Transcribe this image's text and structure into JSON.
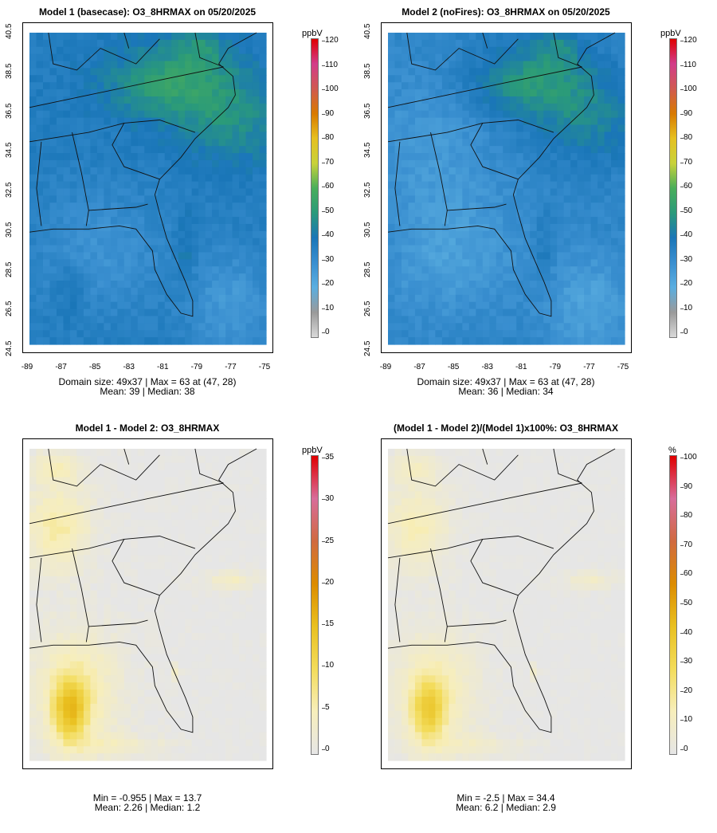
{
  "panels": [
    {
      "title": "Model 1 (basecase): O3_8HRMAX on 05/20/2025",
      "unit": "ppbV",
      "colorbar_ticks": [
        "0",
        "10",
        "20",
        "30",
        "40",
        "50",
        "60",
        "70",
        "80",
        "90",
        "100",
        "110",
        "120"
      ],
      "y_ticks": [
        "24.5",
        "26.5",
        "28.5",
        "30.5",
        "32.5",
        "34.5",
        "36.5",
        "38.5",
        "40.5"
      ],
      "x_ticks": [
        "-89",
        "-87",
        "-85",
        "-83",
        "-81",
        "-79",
        "-77",
        "-75"
      ],
      "stats_line1": "Domain size: 49x37 | Max = 63 at (47, 28)",
      "stats_line2": "Mean: 39 |  Median: 38",
      "scheme": "abs",
      "variant": 1
    },
    {
      "title": "Model 2 (noFires): O3_8HRMAX on 05/20/2025",
      "unit": "ppbV",
      "colorbar_ticks": [
        "0",
        "10",
        "20",
        "30",
        "40",
        "50",
        "60",
        "70",
        "80",
        "90",
        "100",
        "110",
        "120"
      ],
      "y_ticks": [
        "24.5",
        "26.5",
        "28.5",
        "30.5",
        "32.5",
        "34.5",
        "36.5",
        "38.5",
        "40.5"
      ],
      "x_ticks": [
        "-89",
        "-87",
        "-85",
        "-83",
        "-81",
        "-79",
        "-77",
        "-75"
      ],
      "stats_line1": "Domain size: 49x37 | Max = 63 at (47, 28)",
      "stats_line2": "Mean: 36 |  Median: 34",
      "scheme": "abs",
      "variant": 2
    },
    {
      "title": "Model 1 - Model 2: O3_8HRMAX",
      "unit": "ppbV",
      "colorbar_ticks": [
        "0",
        "5",
        "10",
        "15",
        "20",
        "25",
        "30",
        "35"
      ],
      "stats_line1": "Min = -0.955 | Max = 13.7",
      "stats_line2": "Mean: 2.26 |  Median: 1.2",
      "scheme": "diff",
      "variant": 3
    },
    {
      "title": "(Model 1 - Model 2)/(Model 1)x100%: O3_8HRMAX",
      "unit": "%",
      "colorbar_ticks": [
        "0",
        "10",
        "20",
        "30",
        "40",
        "50",
        "60",
        "70",
        "80",
        "90",
        "100"
      ],
      "stats_line1": "Min = -2.5 | Max = 34.4",
      "stats_line2": "Mean: 6.2 |  Median: 2.9",
      "scheme": "diff",
      "variant": 4
    }
  ],
  "colors": {
    "abs": [
      "#d9d9d9",
      "#9a9a9a",
      "#5aaee0",
      "#3a8fd0",
      "#1a76b8",
      "#2a9a7a",
      "#4aae5a",
      "#c8d23a",
      "#e6c020",
      "#d87a00",
      "#d05a50",
      "#d23c8a",
      "#e00000"
    ],
    "diff": [
      "#e6e6e6",
      "#f7eebb",
      "#f3dc5a",
      "#e9c020",
      "#dc8c00",
      "#d06a40",
      "#d86c9a",
      "#e00000"
    ]
  }
}
